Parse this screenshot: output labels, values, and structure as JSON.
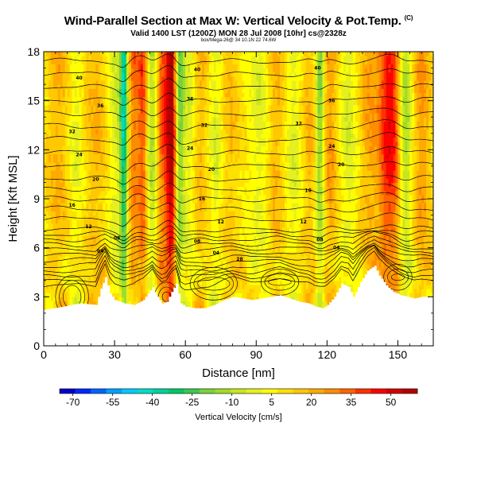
{
  "header": {
    "title": "Wind-Parallel Section at Max W: Vertical Velocity & Pot.Temp.",
    "title_mark": "(C)",
    "subtitle": "Valid 1400 LST (1200Z) MON 28 Jul 2008 [10hr] cs@2328z",
    "credit": "box/Mega-26@ 34 10.1N 22 74.6W"
  },
  "chart_data": {
    "type": "heatmap",
    "title": "Wind-Parallel Section at Max W: Vertical Velocity & Pot.Temp.",
    "xlabel": "Distance [nm]",
    "ylabel": "Height [Kft MSL]",
    "xlim": [
      0,
      165
    ],
    "ylim": [
      0,
      18
    ],
    "xticks": [
      "0",
      "30",
      "60",
      "90",
      "120",
      "150"
    ],
    "yticks": [
      "0",
      "3",
      "6",
      "9",
      "12",
      "15",
      "18"
    ],
    "colorbar": {
      "label": "Vertical Velocity [cm/s]",
      "tick_labels": [
        "-70",
        "-55",
        "-40",
        "-25",
        "-10",
        "5",
        "20",
        "35",
        "50"
      ],
      "range": [
        -75,
        60
      ],
      "colors": [
        "#0000c8",
        "#0028ff",
        "#0064ff",
        "#00a0ff",
        "#00c8ff",
        "#00dcc8",
        "#00d296",
        "#00c864",
        "#3cc850",
        "#78d23c",
        "#a0dc28",
        "#c8e61e",
        "#e6f01e",
        "#ffff00",
        "#ffe100",
        "#ffc800",
        "#ffaa00",
        "#ff8c00",
        "#ff6400",
        "#ff3200",
        "#ff0000",
        "#d20000",
        "#b40000"
      ]
    },
    "terrain_kft": [
      [
        0,
        2.2
      ],
      [
        8,
        2.4
      ],
      [
        15,
        2.6
      ],
      [
        22,
        2.5
      ],
      [
        24,
        3.5
      ],
      [
        26,
        4.2
      ],
      [
        28,
        3.2
      ],
      [
        30,
        2.8
      ],
      [
        34,
        2.6
      ],
      [
        38,
        2.5
      ],
      [
        42,
        2.8
      ],
      [
        46,
        3.6
      ],
      [
        48,
        3.0
      ],
      [
        50,
        2.6
      ],
      [
        52,
        2.7
      ],
      [
        54,
        3.3
      ],
      [
        56,
        3.8
      ],
      [
        58,
        2.6
      ],
      [
        60,
        2.4
      ],
      [
        64,
        2.3
      ],
      [
        68,
        2.3
      ],
      [
        72,
        2.5
      ],
      [
        76,
        2.8
      ],
      [
        80,
        3.0
      ],
      [
        84,
        2.9
      ],
      [
        88,
        2.8
      ],
      [
        92,
        2.9
      ],
      [
        96,
        3.0
      ],
      [
        100,
        3.1
      ],
      [
        104,
        2.9
      ],
      [
        108,
        2.7
      ],
      [
        112,
        2.6
      ],
      [
        115,
        2.4
      ],
      [
        118,
        2.3
      ],
      [
        120,
        2.5
      ],
      [
        123,
        3.0
      ],
      [
        126,
        3.8
      ],
      [
        129,
        3.6
      ],
      [
        131,
        3.0
      ],
      [
        134,
        3.9
      ],
      [
        137,
        4.6
      ],
      [
        140,
        4.9
      ],
      [
        142,
        4.3
      ],
      [
        145,
        3.7
      ],
      [
        148,
        3.3
      ],
      [
        151,
        3.1
      ],
      [
        154,
        3.0
      ],
      [
        157,
        2.9
      ],
      [
        160,
        3.0
      ],
      [
        165,
        3.0
      ]
    ],
    "updraft_columns": [
      {
        "x": 6,
        "w": 4.0,
        "value": 12
      },
      {
        "x": 14,
        "w": 3.0,
        "value": -10
      },
      {
        "x": 22,
        "w": 5.0,
        "value": 10
      },
      {
        "x": 30,
        "w": 3.0,
        "value": -12
      },
      {
        "x": 34,
        "w": 1.8,
        "value": -48
      },
      {
        "x": 38,
        "w": 2.5,
        "value": 22
      },
      {
        "x": 42,
        "w": 2.0,
        "value": 28
      },
      {
        "x": 46,
        "w": 2.5,
        "value": -22
      },
      {
        "x": 50,
        "w": 2.5,
        "value": 26
      },
      {
        "x": 54,
        "w": 2.2,
        "value": 55
      },
      {
        "x": 57.5,
        "w": 2.0,
        "value": -32
      },
      {
        "x": 62,
        "w": 2.5,
        "value": -14
      },
      {
        "x": 66,
        "w": 3.5,
        "value": 10
      },
      {
        "x": 73,
        "w": 3.0,
        "value": -12
      },
      {
        "x": 79,
        "w": 4.0,
        "value": 8
      },
      {
        "x": 92,
        "w": 5.0,
        "value": -11
      },
      {
        "x": 98,
        "w": 4.0,
        "value": 12
      },
      {
        "x": 106,
        "w": 3.5,
        "value": -12
      },
      {
        "x": 113,
        "w": 4.0,
        "value": 10
      },
      {
        "x": 117,
        "w": 2.0,
        "value": -34
      },
      {
        "x": 121,
        "w": 3.5,
        "value": 16
      },
      {
        "x": 129,
        "w": 4.0,
        "value": -12
      },
      {
        "x": 138,
        "w": 4.0,
        "value": 14
      },
      {
        "x": 145,
        "w": 3.5,
        "value": 30
      },
      {
        "x": 149,
        "w": 3.0,
        "value": 24
      },
      {
        "x": 153,
        "w": 3.0,
        "value": -24
      },
      {
        "x": 160,
        "w": 3.5,
        "value": 16
      }
    ],
    "theta_contour_labels": [
      {
        "x": 15,
        "y": 16.4,
        "label": "40"
      },
      {
        "x": 24,
        "y": 14.7,
        "label": "36"
      },
      {
        "x": 12,
        "y": 13.1,
        "label": "32"
      },
      {
        "x": 15,
        "y": 11.7,
        "label": "24"
      },
      {
        "x": 22,
        "y": 10.2,
        "label": "20"
      },
      {
        "x": 12,
        "y": 8.6,
        "label": "16"
      },
      {
        "x": 19,
        "y": 7.3,
        "label": "12"
      },
      {
        "x": 31,
        "y": 6.6,
        "label": "08"
      },
      {
        "x": 24,
        "y": 5.8,
        "label": "04"
      },
      {
        "x": 65,
        "y": 16.9,
        "label": "40"
      },
      {
        "x": 62,
        "y": 15.1,
        "label": "36"
      },
      {
        "x": 68,
        "y": 13.5,
        "label": "32"
      },
      {
        "x": 62,
        "y": 12.1,
        "label": "24"
      },
      {
        "x": 71,
        "y": 10.8,
        "label": "20"
      },
      {
        "x": 67,
        "y": 9.0,
        "label": "16"
      },
      {
        "x": 75,
        "y": 7.6,
        "label": "12"
      },
      {
        "x": 65,
        "y": 6.4,
        "label": "08"
      },
      {
        "x": 73,
        "y": 5.7,
        "label": "04"
      },
      {
        "x": 83,
        "y": 5.3,
        "label": "28"
      },
      {
        "x": 116,
        "y": 17.0,
        "label": "40"
      },
      {
        "x": 122,
        "y": 15.0,
        "label": "36"
      },
      {
        "x": 108,
        "y": 13.6,
        "label": "32"
      },
      {
        "x": 122,
        "y": 12.2,
        "label": "24"
      },
      {
        "x": 126,
        "y": 11.1,
        "label": "20"
      },
      {
        "x": 112,
        "y": 9.5,
        "label": "16"
      },
      {
        "x": 110,
        "y": 7.6,
        "label": "12"
      },
      {
        "x": 117,
        "y": 6.5,
        "label": "08"
      },
      {
        "x": 124,
        "y": 6.0,
        "label": "04"
      }
    ]
  }
}
